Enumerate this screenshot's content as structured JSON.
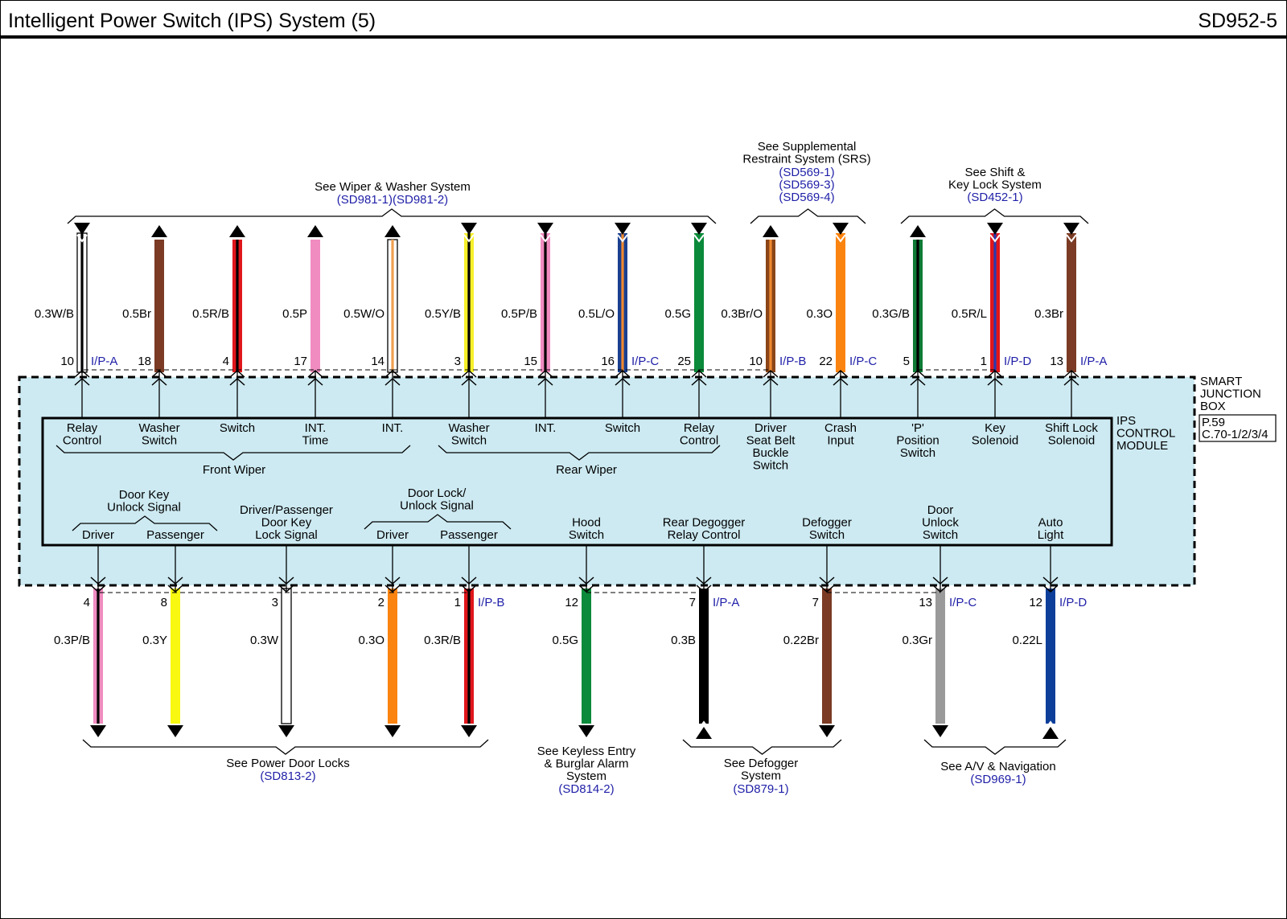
{
  "header": {
    "title": "Intelligent Power Switch (IPS) System (5)",
    "page_code": "SD952-5"
  },
  "junction_box": {
    "label_lines": [
      "SMART",
      "JUNCTION",
      "BOX"
    ],
    "ref_lines": [
      "P.59",
      "C.70-1/2/3/4"
    ],
    "fill": "#cdeaf2"
  },
  "module": {
    "label_lines": [
      "IPS",
      "CONTROL",
      "MODULE"
    ]
  },
  "top_groups": [
    {
      "id": "wiper",
      "lines": [
        "See Wiper & Washer System"
      ],
      "refs": [
        "(SD981-1)(SD981-2)"
      ]
    },
    {
      "id": "srs",
      "lines": [
        "See Supplemental",
        "Restraint System (SRS)"
      ],
      "refs": [
        "(SD569-1)",
        "(SD569-3)",
        "(SD569-4)"
      ]
    },
    {
      "id": "shift",
      "lines": [
        "See Shift &",
        "Key Lock System"
      ],
      "refs": [
        "(SD452-1)"
      ]
    }
  ],
  "bottom_groups": [
    {
      "id": "doorlocks",
      "lines": [
        "See Power Door Locks"
      ],
      "refs": [
        "(SD813-2)"
      ]
    },
    {
      "id": "keyless",
      "lines": [
        "See Keyless Entry",
        "& Burglar Alarm",
        "System"
      ],
      "refs": [
        "(SD814-2)"
      ]
    },
    {
      "id": "defogger",
      "lines": [
        "See Defogger",
        "System"
      ],
      "refs": [
        "(SD879-1)"
      ]
    },
    {
      "id": "av",
      "lines": [
        "See A/V & Navigation"
      ],
      "refs": [
        "(SD969-1)"
      ]
    }
  ],
  "top_wires": [
    {
      "pin": "10",
      "connector": "I/P-A",
      "wire": "0.3W/B",
      "base": "#ffffff",
      "stripe": "#000000",
      "arrow": "down",
      "func": [
        "Relay",
        "Control"
      ]
    },
    {
      "pin": "18",
      "connector": "",
      "wire": "0.5Br",
      "base": "#7b3b24",
      "stripe": "",
      "arrow": "up",
      "func": [
        "Washer",
        "Switch"
      ]
    },
    {
      "pin": "4",
      "connector": "",
      "wire": "0.5R/B",
      "base": "#e0161b",
      "stripe": "#000000",
      "arrow": "up",
      "func": [
        "Switch"
      ]
    },
    {
      "pin": "17",
      "connector": "",
      "wire": "0.5P",
      "base": "#f08cc0",
      "stripe": "",
      "arrow": "up",
      "func": [
        "INT.",
        "Time"
      ]
    },
    {
      "pin": "14",
      "connector": "",
      "wire": "0.5W/O",
      "base": "#ffffff",
      "stripe": "#f0a050",
      "arrow": "up",
      "func": [
        "INT."
      ]
    },
    {
      "pin": "3",
      "connector": "",
      "wire": "0.5Y/B",
      "base": "#f6f02a",
      "stripe": "#000000",
      "arrow": "down",
      "func": [
        "Washer",
        "Switch"
      ]
    },
    {
      "pin": "15",
      "connector": "",
      "wire": "0.5P/B",
      "base": "#f08cc0",
      "stripe": "#000000",
      "arrow": "down",
      "func": [
        "INT."
      ]
    },
    {
      "pin": "16",
      "connector": "I/P-C",
      "wire": "0.5L/O",
      "base": "#1a3f8f",
      "stripe": "#f08a30",
      "arrow": "down",
      "func": [
        "Switch"
      ]
    },
    {
      "pin": "25",
      "connector": "",
      "wire": "0.5G",
      "base": "#0a8a3a",
      "stripe": "",
      "arrow": "down",
      "func": [
        "Relay",
        "Control"
      ]
    },
    {
      "pin": "10",
      "connector": "I/P-B",
      "wire": "0.3Br/O",
      "base": "#8b4518",
      "stripe": "#f08a30",
      "arrow": "up",
      "func": [
        "Driver",
        "Seat Belt",
        "Buckle",
        "Switch"
      ]
    },
    {
      "pin": "22",
      "connector": "I/P-C",
      "wire": "0.3O",
      "base": "#fb8410",
      "stripe": "",
      "arrow": "down",
      "func": [
        "Crash",
        "Input"
      ]
    },
    {
      "pin": "5",
      "connector": "",
      "wire": "0.3G/B",
      "base": "#0f7a35",
      "stripe": "#000000",
      "arrow": "up",
      "func": [
        "'P'",
        "Position",
        "Switch"
      ]
    },
    {
      "pin": "1",
      "connector": "I/P-D",
      "wire": "0.5R/L",
      "base": "#e0161b",
      "stripe": "#2a3ab0",
      "arrow": "down",
      "func": [
        "Key",
        "Solenoid"
      ]
    },
    {
      "pin": "13",
      "connector": "I/P-A",
      "wire": "0.3Br",
      "base": "#7b3b24",
      "stripe": "",
      "arrow": "down",
      "func": [
        "Shift Lock",
        "Solenoid"
      ]
    }
  ],
  "top_subgroups": [
    {
      "label": "Front Wiper"
    },
    {
      "label": "Rear Wiper"
    }
  ],
  "bottom_wires": [
    {
      "pin": "4",
      "connector": "",
      "wire": "0.3P/B",
      "base": "#f08cc0",
      "stripe": "#000000",
      "arrow": "down",
      "func": [
        "Driver"
      ]
    },
    {
      "pin": "8",
      "connector": "",
      "wire": "0.3Y",
      "base": "#f8f810",
      "stripe": "",
      "arrow": "down",
      "func": [
        "Passenger"
      ]
    },
    {
      "pin": "3",
      "connector": "",
      "wire": "0.3W",
      "base": "#ffffff",
      "stripe": "",
      "arrow": "down",
      "func": [
        "Driver/Passenger",
        "Door Key",
        "Lock Signal"
      ]
    },
    {
      "pin": "2",
      "connector": "",
      "wire": "0.3O",
      "base": "#fb8410",
      "stripe": "",
      "arrow": "down",
      "func": [
        "Driver"
      ]
    },
    {
      "pin": "1",
      "connector": "I/P-B",
      "wire": "0.3R/B",
      "base": "#e0161b",
      "stripe": "#000000",
      "arrow": "down",
      "func": [
        "Passenger"
      ]
    },
    {
      "pin": "12",
      "connector": "",
      "wire": "0.5G",
      "base": "#0a8a3a",
      "stripe": "",
      "arrow": "down",
      "func": [
        "Hood",
        "Switch"
      ]
    },
    {
      "pin": "7",
      "connector": "I/P-A",
      "wire": "0.3B",
      "base": "#000000",
      "stripe": "",
      "arrow": "up",
      "func": [
        "Rear Degogger",
        "Relay Control"
      ]
    },
    {
      "pin": "7",
      "connector": "",
      "wire": "0.22Br",
      "base": "#7b3b24",
      "stripe": "",
      "arrow": "down",
      "func": [
        "Defogger",
        "Switch"
      ]
    },
    {
      "pin": "13",
      "connector": "I/P-C",
      "wire": "0.3Gr",
      "base": "#9a9a9a",
      "stripe": "",
      "arrow": "down",
      "func": [
        "Door",
        "Unlock",
        "Switch"
      ]
    },
    {
      "pin": "12",
      "connector": "I/P-D",
      "wire": "0.22L",
      "base": "#0d3f9a",
      "stripe": "",
      "arrow": "up",
      "func": [
        "Auto",
        "Light"
      ]
    }
  ],
  "bottom_subgroups": [
    {
      "lines": [
        "Door Key",
        "Unlock Signal"
      ]
    },
    {
      "lines": [
        "Door Lock/",
        "Unlock Signal"
      ]
    }
  ]
}
